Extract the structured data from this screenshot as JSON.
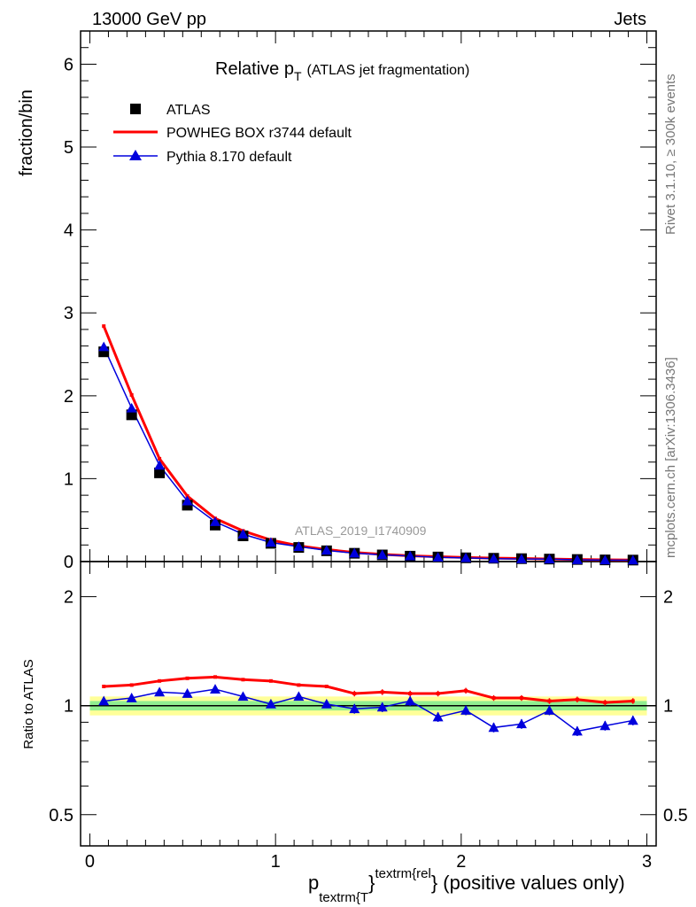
{
  "header": {
    "left": "13000 GeV pp",
    "right": "Jets"
  },
  "side_text": {
    "top": "Rivet 3.1.10, ≥ 300k events",
    "bottom": "mcplots.cern.ch [arXiv:1306.3436]"
  },
  "watermark": "ATLAS_2019_I1740909",
  "colors": {
    "atlas": "#000000",
    "powheg": "#ff0000",
    "pythia": "#0000dd",
    "band_inner": "#90ee90",
    "band_outer": "#ffff99"
  },
  "chart_data": [
    {
      "type": "line",
      "panel": "main",
      "title": "Relative p",
      "title_sub": "T",
      "title_suffix": "(ATLAS jet fragmentation)",
      "ylabel": "fraction/bin",
      "xlim": [
        -0.05,
        3.05
      ],
      "ylim": [
        0,
        6.4
      ],
      "yticks": [
        "0",
        "1",
        "2",
        "3",
        "4",
        "5",
        "6"
      ],
      "x": [
        0.075,
        0.225,
        0.375,
        0.525,
        0.675,
        0.825,
        0.975,
        1.125,
        1.275,
        1.425,
        1.575,
        1.725,
        1.875,
        2.025,
        2.175,
        2.325,
        2.475,
        2.625,
        2.775,
        2.925
      ],
      "legend": [
        "ATLAS",
        "POWHEG BOX r3744 default",
        "Pythia 8.170 default"
      ],
      "legend_position": "top-left",
      "series": [
        {
          "name": "ATLAS",
          "values": [
            2.53,
            1.77,
            1.07,
            0.68,
            0.44,
            0.31,
            0.22,
            0.17,
            0.13,
            0.1,
            0.08,
            0.065,
            0.055,
            0.045,
            0.04,
            0.035,
            0.03,
            0.025,
            0.02,
            0.018
          ]
        },
        {
          "name": "POWHEG BOX r3744 default",
          "values": [
            2.84,
            2.01,
            1.24,
            0.79,
            0.52,
            0.37,
            0.26,
            0.19,
            0.145,
            0.11,
            0.087,
            0.07,
            0.059,
            0.05,
            0.042,
            0.037,
            0.031,
            0.026,
            0.021,
            0.019
          ]
        },
        {
          "name": "Pythia 8.170 default",
          "values": [
            2.59,
            1.85,
            1.16,
            0.73,
            0.48,
            0.33,
            0.23,
            0.18,
            0.135,
            0.101,
            0.081,
            0.067,
            0.051,
            0.044,
            0.035,
            0.031,
            0.029,
            0.021,
            0.018,
            0.016
          ]
        }
      ]
    },
    {
      "type": "line",
      "panel": "ratio",
      "ylabel": "Ratio to ATLAS",
      "xlabel_main": "p",
      "xlabel_sub": "textrm{T",
      "xlabel_sup": "textrm{rel",
      "xlabel_brace": "}",
      "xlabel_suffix": "} (positive values only)",
      "xlim": [
        -0.05,
        3.05
      ],
      "ylim": [
        0.41,
        2.5
      ],
      "yscale": "log",
      "yticks": [
        "0.5",
        "1",
        "2"
      ],
      "xticks": [
        "0",
        "1",
        "2",
        "3"
      ],
      "band_inner": 0.03,
      "band_outer": 0.06,
      "series": [
        {
          "name": "POWHEG BOX r3744 default",
          "values": [
            1.13,
            1.14,
            1.17,
            1.19,
            1.2,
            1.18,
            1.17,
            1.14,
            1.13,
            1.08,
            1.09,
            1.08,
            1.08,
            1.1,
            1.05,
            1.05,
            1.03,
            1.04,
            1.02,
            1.03
          ]
        },
        {
          "name": "Pythia 8.170 default",
          "values": [
            1.03,
            1.05,
            1.09,
            1.08,
            1.11,
            1.06,
            1.01,
            1.06,
            1.01,
            0.98,
            0.99,
            1.03,
            0.93,
            0.97,
            0.87,
            0.89,
            0.97,
            0.85,
            0.88,
            0.91
          ]
        }
      ]
    }
  ]
}
